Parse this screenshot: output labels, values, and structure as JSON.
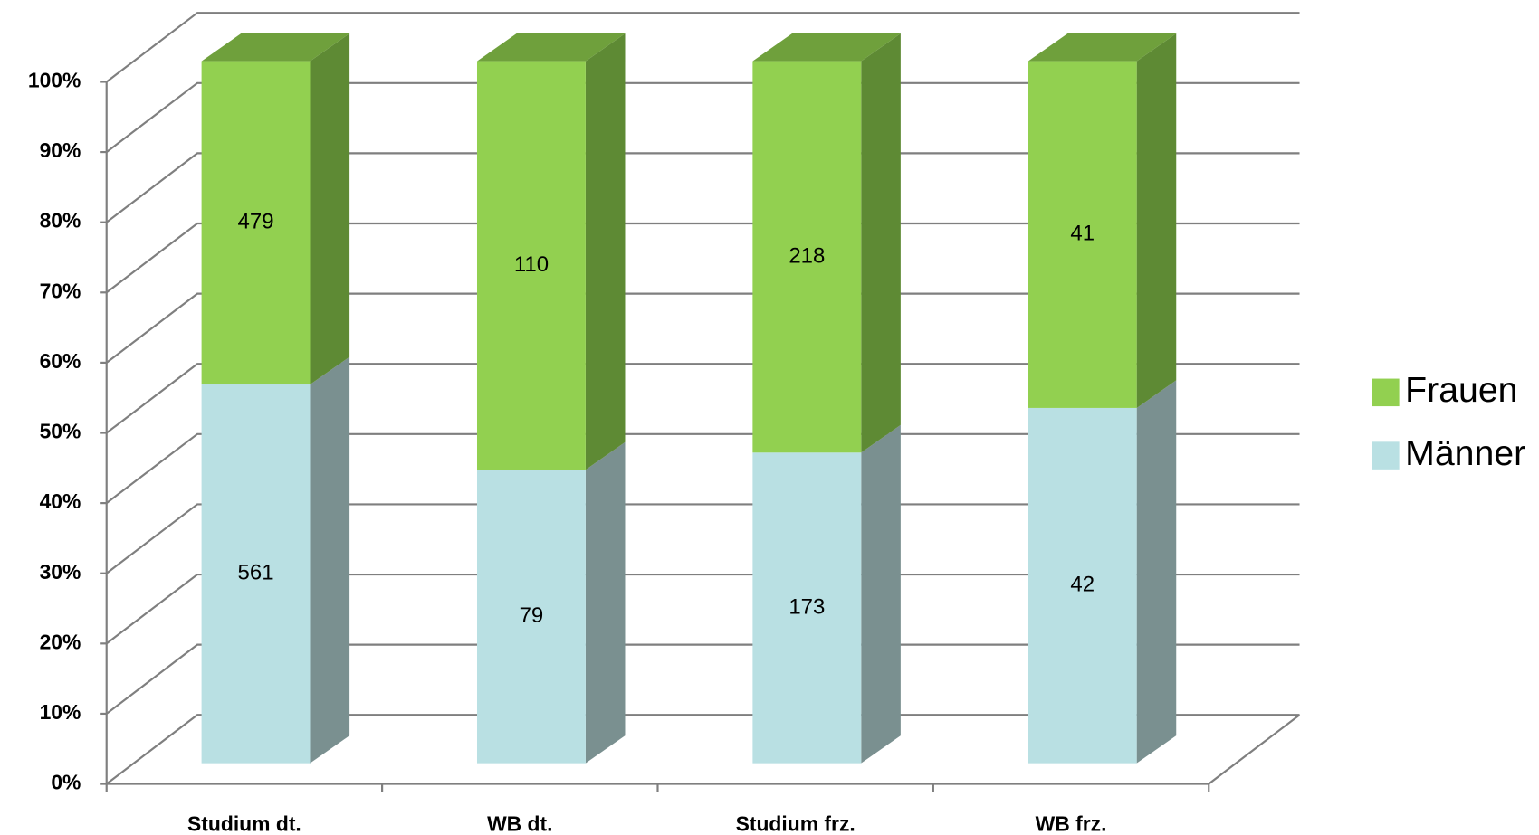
{
  "chart_data": {
    "type": "bar",
    "stacking": "percent",
    "categories": [
      "Studium dt.",
      "WB dt.",
      "Studium frz.",
      "WB frz."
    ],
    "series": [
      {
        "name": "Männer",
        "color": "#b9e0e3",
        "values": [
          561,
          79,
          173,
          42
        ]
      },
      {
        "name": "Frauen",
        "color": "#92d050",
        "values": [
          479,
          110,
          218,
          41
        ]
      }
    ],
    "ylim": [
      0,
      100
    ],
    "yticks": [
      {
        "value": 0,
        "label": "0%"
      },
      {
        "value": 10,
        "label": "10%"
      },
      {
        "value": 20,
        "label": "20%"
      },
      {
        "value": 30,
        "label": "30%"
      },
      {
        "value": 40,
        "label": "40%"
      },
      {
        "value": 50,
        "label": "50%"
      },
      {
        "value": 60,
        "label": "60%"
      },
      {
        "value": 70,
        "label": "70%"
      },
      {
        "value": 80,
        "label": "80%"
      },
      {
        "value": 90,
        "label": "90%"
      },
      {
        "value": 100,
        "label": "100%"
      }
    ],
    "grid": true,
    "legend": "right"
  }
}
